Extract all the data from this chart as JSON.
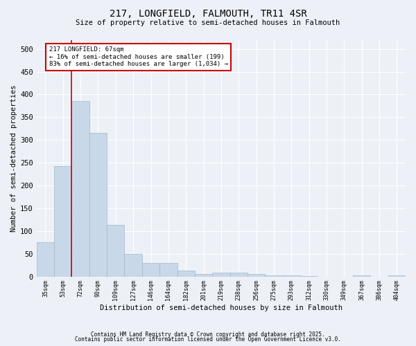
{
  "title1": "217, LONGFIELD, FALMOUTH, TR11 4SR",
  "title2": "Size of property relative to semi-detached houses in Falmouth",
  "xlabel": "Distribution of semi-detached houses by size in Falmouth",
  "ylabel": "Number of semi-detached properties",
  "categories": [
    "35sqm",
    "53sqm",
    "72sqm",
    "90sqm",
    "109sqm",
    "127sqm",
    "146sqm",
    "164sqm",
    "182sqm",
    "201sqm",
    "219sqm",
    "238sqm",
    "256sqm",
    "275sqm",
    "293sqm",
    "312sqm",
    "330sqm",
    "349sqm",
    "367sqm",
    "386sqm",
    "404sqm"
  ],
  "values": [
    75,
    242,
    385,
    315,
    113,
    50,
    30,
    30,
    13,
    5,
    8,
    8,
    5,
    3,
    2,
    1,
    0,
    0,
    3,
    0,
    2
  ],
  "bar_color": "#c8d8e8",
  "bar_edge_color": "#a0b8cc",
  "property_line_x": 1.5,
  "annotation_text": "217 LONGFIELD: 67sqm\n← 16% of semi-detached houses are smaller (199)\n83% of semi-detached houses are larger (1,034) →",
  "annotation_box_color": "#ffffff",
  "annotation_box_edge": "#cc0000",
  "line_color": "#cc0000",
  "ylim": [
    0,
    520
  ],
  "yticks": [
    0,
    50,
    100,
    150,
    200,
    250,
    300,
    350,
    400,
    450,
    500
  ],
  "bg_color": "#edf1f7",
  "grid_color": "#ffffff",
  "footer1": "Contains HM Land Registry data © Crown copyright and database right 2025.",
  "footer2": "Contains public sector information licensed under the Open Government Licence v3.0."
}
